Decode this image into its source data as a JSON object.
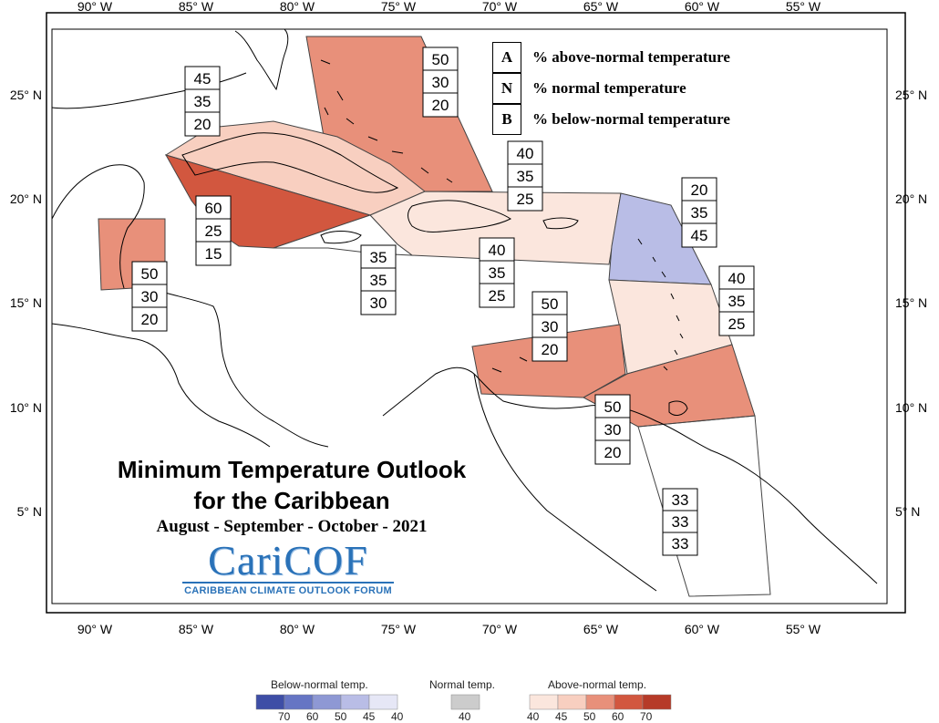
{
  "colors": {
    "above_40": "#fbe6dd",
    "above_45": "#f8cfc0",
    "above_50": "#e8907a",
    "above_60": "#d2573f",
    "above_70": "#b63a28",
    "below_45": "#b9bde6",
    "normal_40": "#cccccc",
    "below_70": "#3e4ea6",
    "below_60": "#6675c4",
    "below_50": "#8e98d4",
    "below_40": "#e6e7f6"
  },
  "axes": {
    "longitudes_top": [
      "90° W",
      "85° W",
      "80° W",
      "75° W",
      "70° W",
      "65° W",
      "60° W",
      "55° W"
    ],
    "longitudes_bottom": [
      "90° W",
      "85° W",
      "80° W",
      "75° W",
      "70° W",
      "65° W",
      "60° W",
      "55° W"
    ],
    "latitudes_left": [
      "25° N",
      "20° N",
      "15° N",
      "10° N",
      "5° N"
    ],
    "latitudes_right": [
      "25° N",
      "20° N",
      "15° N",
      "10° N",
      "5° N"
    ]
  },
  "key": {
    "rows": [
      {
        "letter": "A",
        "text": "% above-normal temperature"
      },
      {
        "letter": "N",
        "text": "% normal temperature"
      },
      {
        "letter": "B",
        "text": "% below-normal temperature"
      }
    ]
  },
  "regions": [
    {
      "name": "bahamas",
      "above": "50",
      "normal": "30",
      "below": "20"
    },
    {
      "name": "cuba",
      "above": "45",
      "normal": "35",
      "below": "20"
    },
    {
      "name": "cayman-western-cuba",
      "above": "60",
      "normal": "25",
      "below": "15"
    },
    {
      "name": "belize",
      "above": "50",
      "normal": "30",
      "below": "20"
    },
    {
      "name": "jamaica",
      "above": "35",
      "normal": "35",
      "below": "30"
    },
    {
      "name": "hispaniola-north",
      "above": "40",
      "normal": "35",
      "below": "25"
    },
    {
      "name": "hispaniola-puerto-rico",
      "above": "40",
      "normal": "35",
      "below": "25"
    },
    {
      "name": "leeward-islands",
      "above": "20",
      "normal": "35",
      "below": "45"
    },
    {
      "name": "windward-islands",
      "above": "40",
      "normal": "35",
      "below": "25"
    },
    {
      "name": "abc-islands",
      "above": "50",
      "normal": "30",
      "below": "20"
    },
    {
      "name": "trinidad-tobago",
      "above": "50",
      "normal": "30",
      "below": "20"
    },
    {
      "name": "guianas",
      "above": "33",
      "normal": "33",
      "below": "33"
    }
  ],
  "title": {
    "line1": "Minimum Temperature Outlook",
    "line2": "for the Caribbean",
    "season": "August - September - October - 2021"
  },
  "logo": {
    "word": "CariCOF",
    "subtitle": "CARIBBEAN CLIMATE OUTLOOK FORUM"
  },
  "legend_scale": {
    "below_label": "Below-normal temp.",
    "normal_label": "Normal temp.",
    "above_label": "Above-normal temp.",
    "below_ticks": [
      "70",
      "60",
      "50",
      "45",
      "40"
    ],
    "normal_ticks": [
      "40"
    ],
    "above_ticks": [
      "40",
      "45",
      "50",
      "60",
      "70"
    ]
  }
}
